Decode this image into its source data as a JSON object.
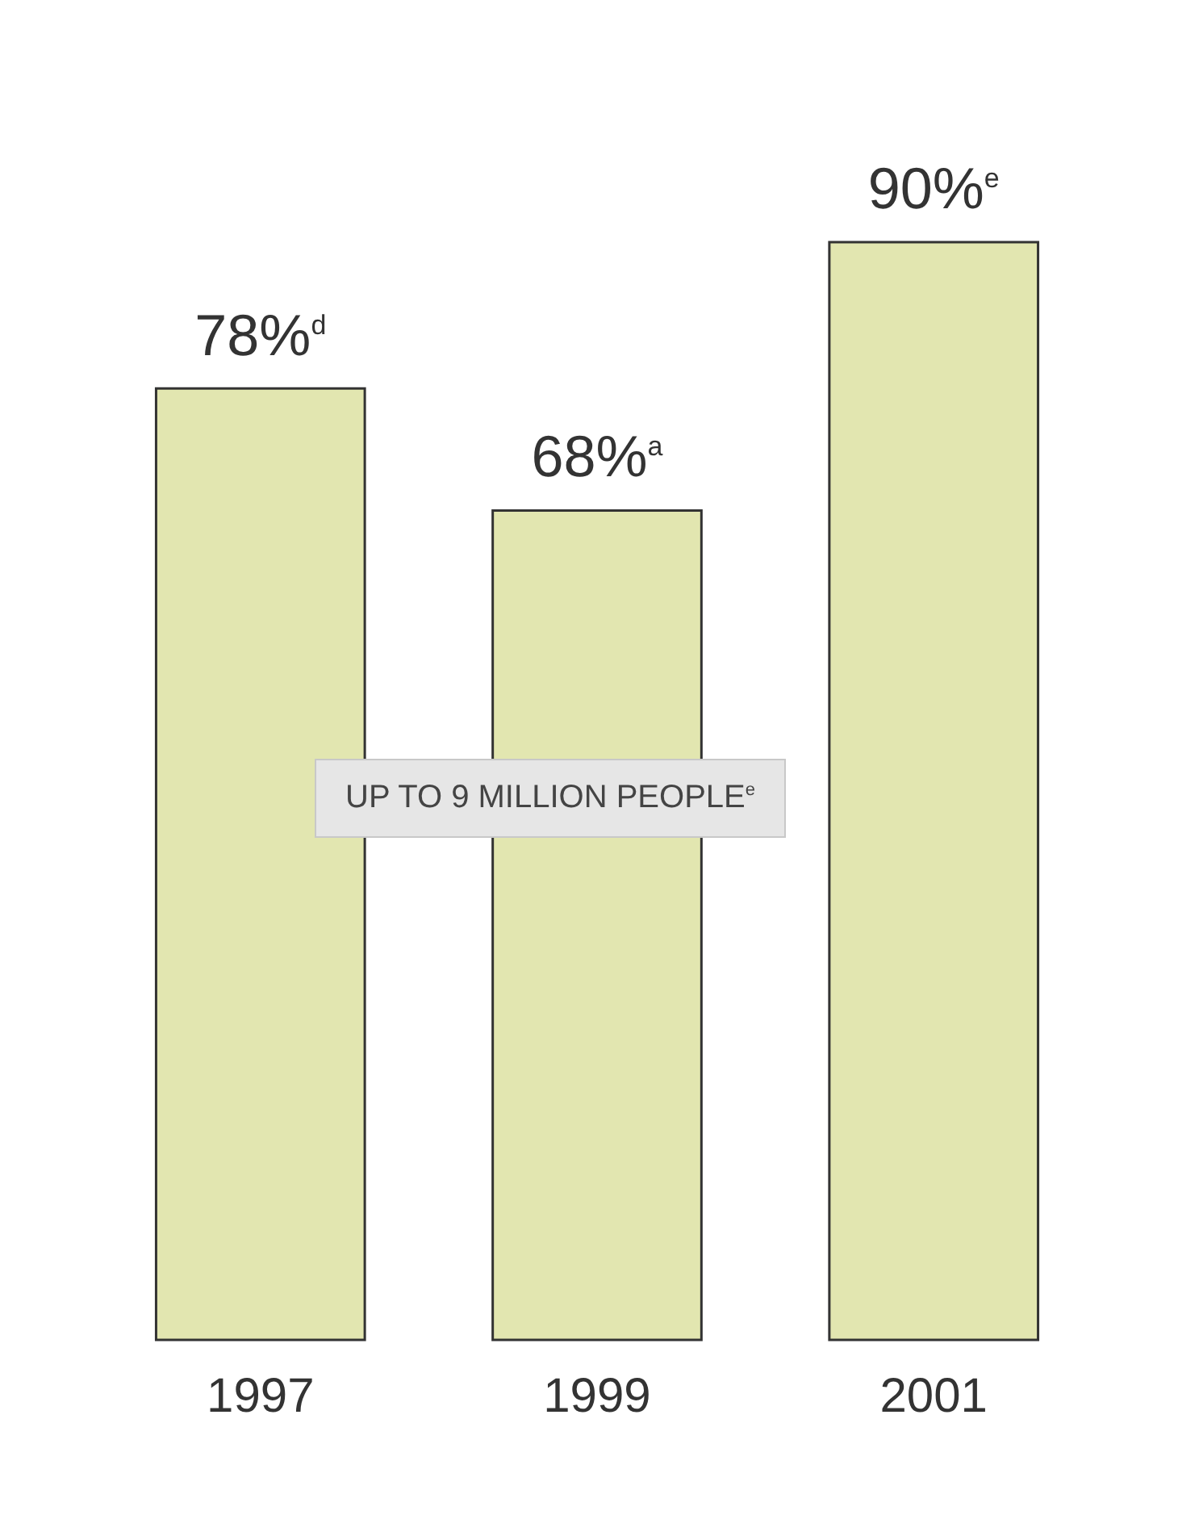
{
  "chart_data": {
    "type": "bar",
    "categories": [
      "1997",
      "1999",
      "2001"
    ],
    "values": [
      78,
      68,
      90
    ],
    "color": "#e2e6b0",
    "value_labels": [
      "78%$^{d}$",
      "68%$^{a}$",
      "90%$^{e}$"
    ],
    "annotations": [
      "UP TO 9 MILLION PEOPLE$^{e}$"
    ]
  }
}
